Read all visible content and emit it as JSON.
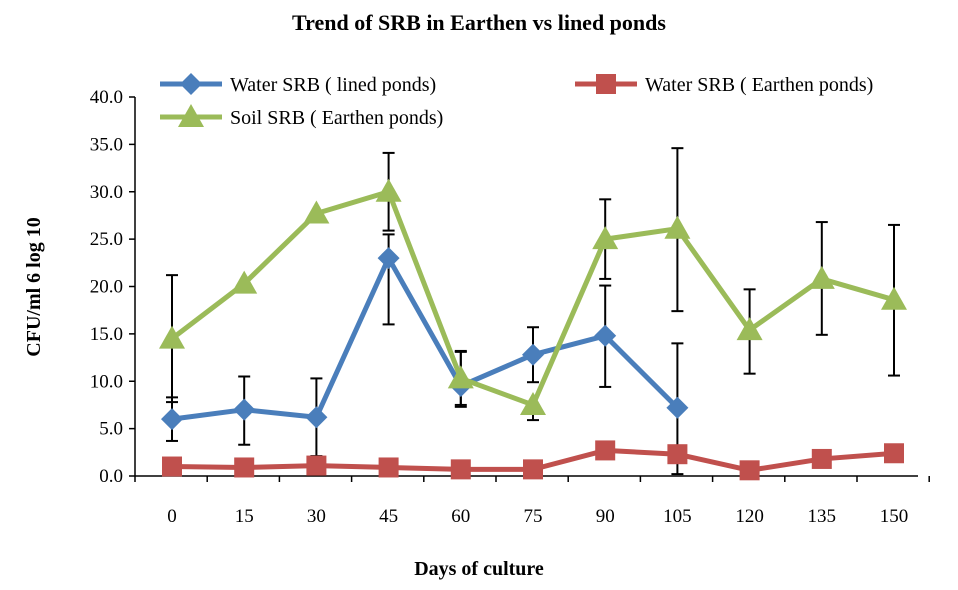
{
  "chart_data": {
    "type": "line",
    "title": "Trend of SRB in Earthen vs lined ponds",
    "xlabel": "Days of culture",
    "ylabel": "CFU/ml  6 log 10",
    "x": [
      "0",
      "15",
      "30",
      "45",
      "60",
      "75",
      "90",
      "105",
      "120",
      "135",
      "150"
    ],
    "ylim": [
      0,
      40
    ],
    "yticks": [
      "0.0",
      "5.0",
      "10.0",
      "15.0",
      "20.0",
      "25.0",
      "30.0",
      "35.0",
      "40.0"
    ],
    "grid": false,
    "legend": "top",
    "series": [
      {
        "name": "Water SRB ( lined ponds)",
        "color": "#4A7EBB",
        "marker": "diamond",
        "values": [
          6.0,
          7.0,
          6.2,
          23.0,
          9.5,
          12.8,
          14.8,
          7.2,
          null,
          null,
          null
        ],
        "err_up": [
          2.3,
          3.5,
          4.1,
          2.5,
          3.7,
          2.9,
          5.3,
          6.8,
          null,
          null,
          null
        ],
        "err_down": [
          2.3,
          3.7,
          4.1,
          7.0,
          2.2,
          2.9,
          5.4,
          7.0,
          null,
          null,
          null
        ]
      },
      {
        "name": "Water SRB ( Earthen ponds)",
        "color": "#C0504D",
        "marker": "square",
        "values": [
          1.0,
          0.9,
          1.1,
          0.9,
          0.7,
          0.7,
          2.7,
          2.3,
          0.6,
          1.8,
          2.4
        ],
        "err_up": [
          null,
          null,
          null,
          null,
          null,
          null,
          null,
          null,
          null,
          null,
          null
        ],
        "err_down": [
          null,
          null,
          null,
          null,
          null,
          null,
          null,
          null,
          null,
          null,
          null
        ]
      },
      {
        "name": "Soil SRB ( Earthen ponds)",
        "color": "#9BBB59",
        "marker": "triangle",
        "values": [
          14.5,
          20.3,
          27.7,
          30.0,
          10.3,
          7.5,
          25.0,
          26.1,
          15.4,
          20.8,
          18.6
        ],
        "err_up": [
          6.7,
          null,
          null,
          4.1,
          2.8,
          null,
          4.2,
          8.5,
          4.3,
          6.0,
          7.9
        ],
        "err_down": [
          6.7,
          null,
          null,
          4.1,
          2.8,
          1.6,
          4.2,
          8.7,
          4.6,
          5.9,
          8.0
        ]
      }
    ]
  }
}
